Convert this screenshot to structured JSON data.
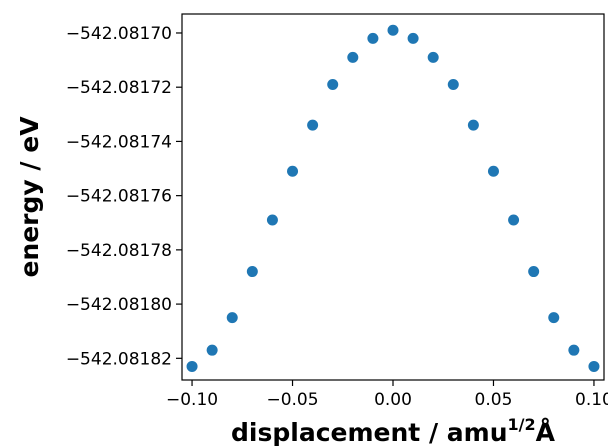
{
  "chart_data": {
    "type": "scatter",
    "xlabel_main": "displacement / amu",
    "xlabel_sup": "1/2",
    "xlabel_unit": "Å",
    "ylabel": "energy / eV",
    "xlim": [
      -0.105,
      0.105
    ],
    "ylim": [
      -542.081828,
      -542.081693
    ],
    "grid": false,
    "marker_color": "#1f77b4",
    "x_ticks": [
      -0.1,
      -0.05,
      0.0,
      0.05,
      0.1
    ],
    "x_tick_labels": [
      "−0.10",
      "−0.05",
      "0.00",
      "0.05",
      "0.10"
    ],
    "y_ticks": [
      -542.08182,
      -542.0818,
      -542.08178,
      -542.08176,
      -542.08174,
      -542.08172,
      -542.0817
    ],
    "y_tick_labels": [
      "−542.08182",
      "−542.08180",
      "−542.08178",
      "−542.08176",
      "−542.08174",
      "−542.08172",
      "−542.08170"
    ],
    "series": [
      {
        "x": [
          -0.1,
          -0.09,
          -0.08,
          -0.07,
          -0.06,
          -0.05,
          -0.04,
          -0.03,
          -0.02,
          -0.01,
          0.0,
          0.01,
          0.02,
          0.03,
          0.04,
          0.05,
          0.06,
          0.07,
          0.08,
          0.09,
          0.1
        ],
        "y": [
          -542.081823,
          -542.081817,
          -542.081805,
          -542.081788,
          -542.081769,
          -542.081751,
          -542.081734,
          -542.081719,
          -542.081709,
          -542.081702,
          -542.081699,
          -542.081702,
          -542.081709,
          -542.081719,
          -542.081734,
          -542.081751,
          -542.081769,
          -542.081788,
          -542.081805,
          -542.081817,
          -542.081823
        ]
      }
    ]
  }
}
